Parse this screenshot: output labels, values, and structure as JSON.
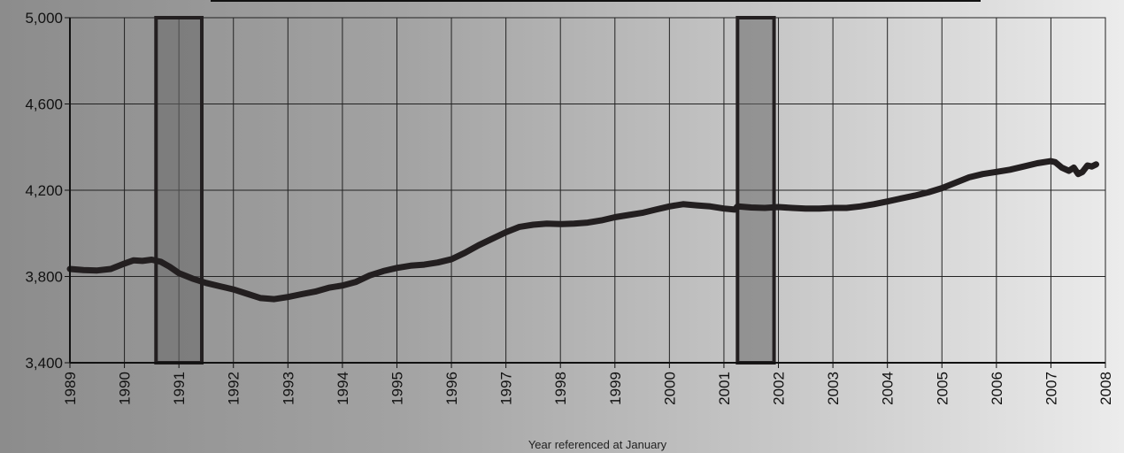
{
  "chart_data": {
    "type": "line",
    "title": "",
    "xlabel": "Year referenced at January",
    "ylabel": "",
    "xlim": [
      1989,
      2008
    ],
    "ylim": [
      3400,
      5000
    ],
    "yticks": [
      {
        "value": 3400,
        "label": "3,400"
      },
      {
        "value": 3800,
        "label": "3,800"
      },
      {
        "value": 4200,
        "label": "4,200"
      },
      {
        "value": 4600,
        "label": "4,600"
      },
      {
        "value": 5000,
        "label": "5,000"
      }
    ],
    "xticks": [
      {
        "value": 1989,
        "label": "1989"
      },
      {
        "value": 1990,
        "label": "1990"
      },
      {
        "value": 1991,
        "label": "1991"
      },
      {
        "value": 1992,
        "label": "1992"
      },
      {
        "value": 1993,
        "label": "1993"
      },
      {
        "value": 1994,
        "label": "1994"
      },
      {
        "value": 1995,
        "label": "1995"
      },
      {
        "value": 1996,
        "label": "1996"
      },
      {
        "value": 1997,
        "label": "1997"
      },
      {
        "value": 1998,
        "label": "1998"
      },
      {
        "value": 1999,
        "label": "1999"
      },
      {
        "value": 2000,
        "label": "2000"
      },
      {
        "value": 2001,
        "label": "2001"
      },
      {
        "value": 2002,
        "label": "2002"
      },
      {
        "value": 2003,
        "label": "2003"
      },
      {
        "value": 2004,
        "label": "2004"
      },
      {
        "value": 2005,
        "label": "2005"
      },
      {
        "value": 2006,
        "label": "2006"
      },
      {
        "value": 2007,
        "label": "2007"
      },
      {
        "value": 2008,
        "label": "2008"
      }
    ],
    "grid": true,
    "shaded_periods": [
      {
        "start": 1990.58,
        "end": 1991.42
      },
      {
        "start": 2001.25,
        "end": 2001.92
      }
    ],
    "series": [
      {
        "color": "#231f20",
        "x": [
          1989.0,
          1989.25,
          1989.5,
          1989.75,
          1990.0,
          1990.17,
          1990.33,
          1990.5,
          1990.67,
          1990.83,
          1991.0,
          1991.25,
          1991.5,
          1991.75,
          1992.0,
          1992.25,
          1992.5,
          1992.75,
          1993.0,
          1993.25,
          1993.5,
          1993.75,
          1994.0,
          1994.25,
          1994.5,
          1994.75,
          1995.0,
          1995.25,
          1995.5,
          1995.75,
          1996.0,
          1996.25,
          1996.5,
          1996.75,
          1997.0,
          1997.25,
          1997.5,
          1997.75,
          1998.0,
          1998.25,
          1998.5,
          1998.75,
          1999.0,
          1999.25,
          1999.5,
          1999.75,
          2000.0,
          2000.25,
          2000.5,
          2000.75,
          2001.0,
          2001.2,
          2001.25,
          2001.5,
          2001.75,
          2002.0,
          2002.25,
          2002.5,
          2002.75,
          2003.0,
          2003.25,
          2003.5,
          2003.75,
          2004.0,
          2004.25,
          2004.5,
          2004.75,
          2005.0,
          2005.25,
          2005.5,
          2005.75,
          2006.0,
          2006.25,
          2006.5,
          2006.75,
          2007.0,
          2007.08,
          2007.2,
          2007.33,
          2007.42,
          2007.5,
          2007.58,
          2007.67,
          2007.75,
          2007.83
        ],
        "y": [
          3835,
          3830,
          3828,
          3835,
          3860,
          3875,
          3872,
          3878,
          3868,
          3845,
          3815,
          3790,
          3770,
          3755,
          3740,
          3720,
          3700,
          3695,
          3705,
          3718,
          3730,
          3748,
          3758,
          3775,
          3805,
          3825,
          3840,
          3850,
          3855,
          3865,
          3880,
          3910,
          3945,
          3975,
          4005,
          4030,
          4040,
          4045,
          4043,
          4045,
          4050,
          4060,
          4075,
          4085,
          4095,
          4110,
          4125,
          4135,
          4130,
          4125,
          4115,
          4110,
          4125,
          4120,
          4118,
          4122,
          4118,
          4115,
          4115,
          4118,
          4118,
          4125,
          4135,
          4148,
          4162,
          4175,
          4190,
          4210,
          4235,
          4260,
          4275,
          4285,
          4295,
          4310,
          4325,
          4335,
          4330,
          4305,
          4290,
          4305,
          4275,
          4285,
          4315,
          4310,
          4320
        ]
      }
    ]
  }
}
